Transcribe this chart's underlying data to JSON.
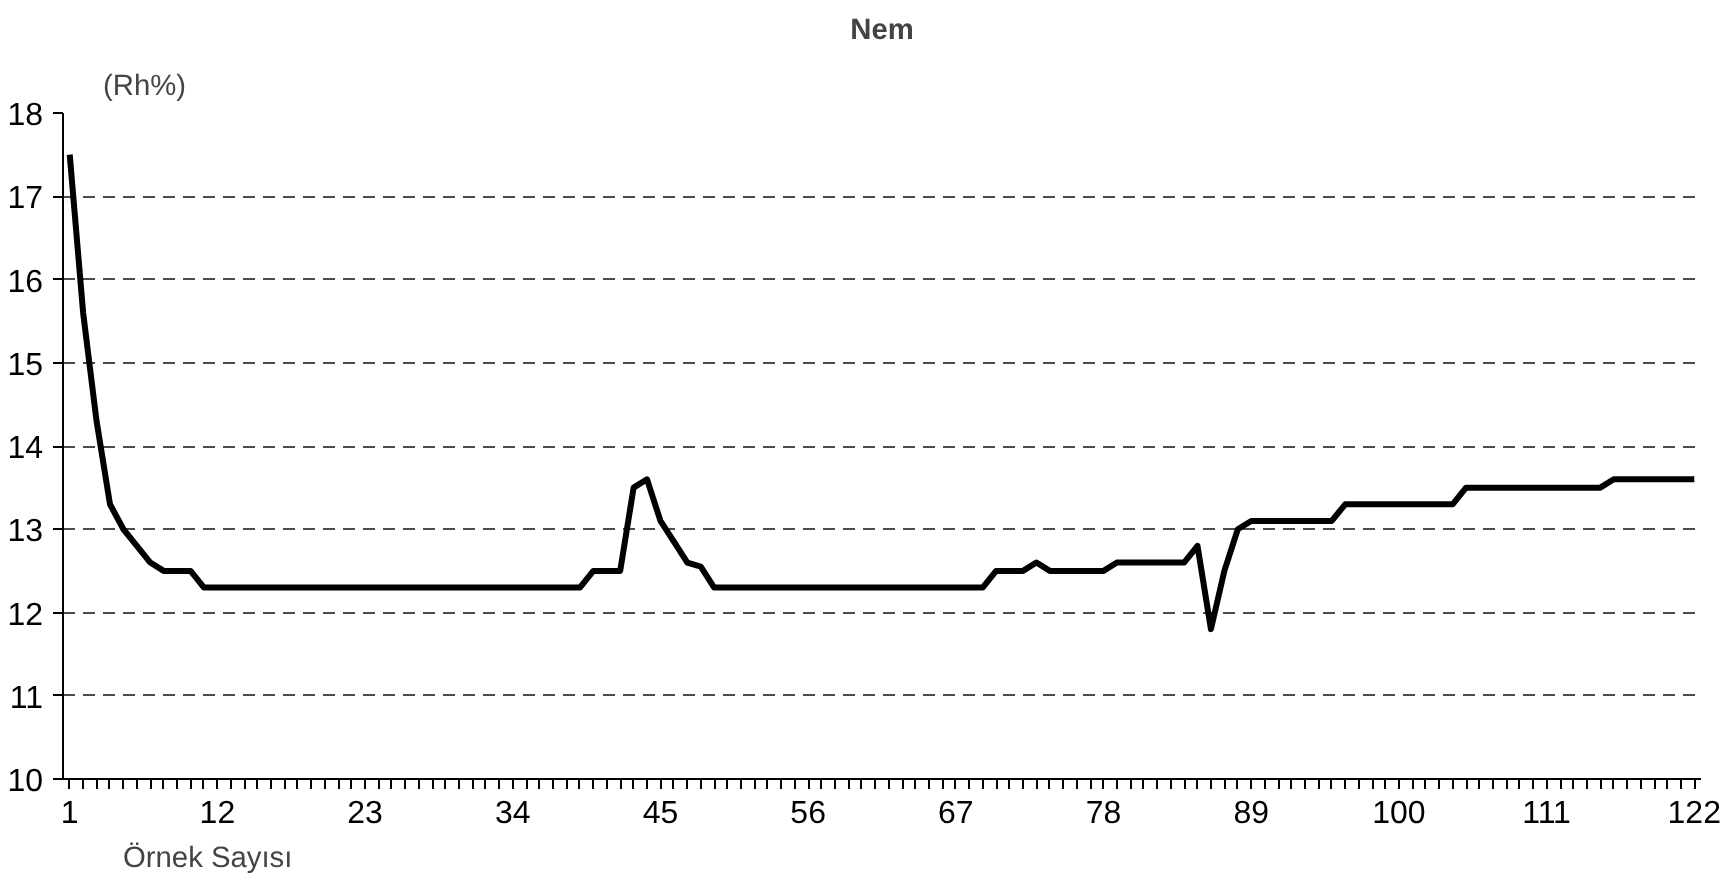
{
  "chart_data": {
    "type": "line",
    "title": "Nem",
    "xlabel": "Örnek Sayısı",
    "ylabel": "(Rh%)",
    "series": [
      {
        "color": "#000000",
        "x": [
          1,
          2,
          3,
          4,
          5,
          6,
          7,
          8,
          9,
          10,
          11,
          39,
          40,
          41,
          42,
          43,
          44,
          45,
          46,
          47,
          48,
          49,
          69,
          70,
          72,
          73,
          74,
          78,
          79,
          84,
          85,
          86,
          87,
          88,
          89,
          95,
          96,
          104,
          105,
          115,
          116,
          122
        ],
        "values": [
          17.5,
          15.6,
          14.3,
          13.3,
          13.0,
          12.8,
          12.6,
          12.5,
          12.5,
          12.5,
          12.3,
          12.3,
          12.5,
          12.5,
          12.5,
          13.5,
          13.6,
          13.1,
          12.85,
          12.6,
          12.55,
          12.3,
          12.3,
          12.5,
          12.5,
          12.6,
          12.5,
          12.5,
          12.6,
          12.6,
          12.8,
          11.8,
          12.5,
          13.0,
          13.1,
          13.1,
          13.3,
          13.3,
          13.5,
          13.5,
          13.6,
          13.6
        ]
      }
    ],
    "xlim": [
      0.5,
      122.5
    ],
    "xticks": [
      1,
      12,
      23,
      34,
      45,
      56,
      67,
      78,
      89,
      100,
      111,
      122
    ],
    "ylim": [
      10,
      18
    ],
    "yticks": [
      10,
      11,
      12,
      13,
      14,
      15,
      16,
      17,
      18
    ],
    "grid": "y",
    "line_style": "solid",
    "marker": "none"
  }
}
